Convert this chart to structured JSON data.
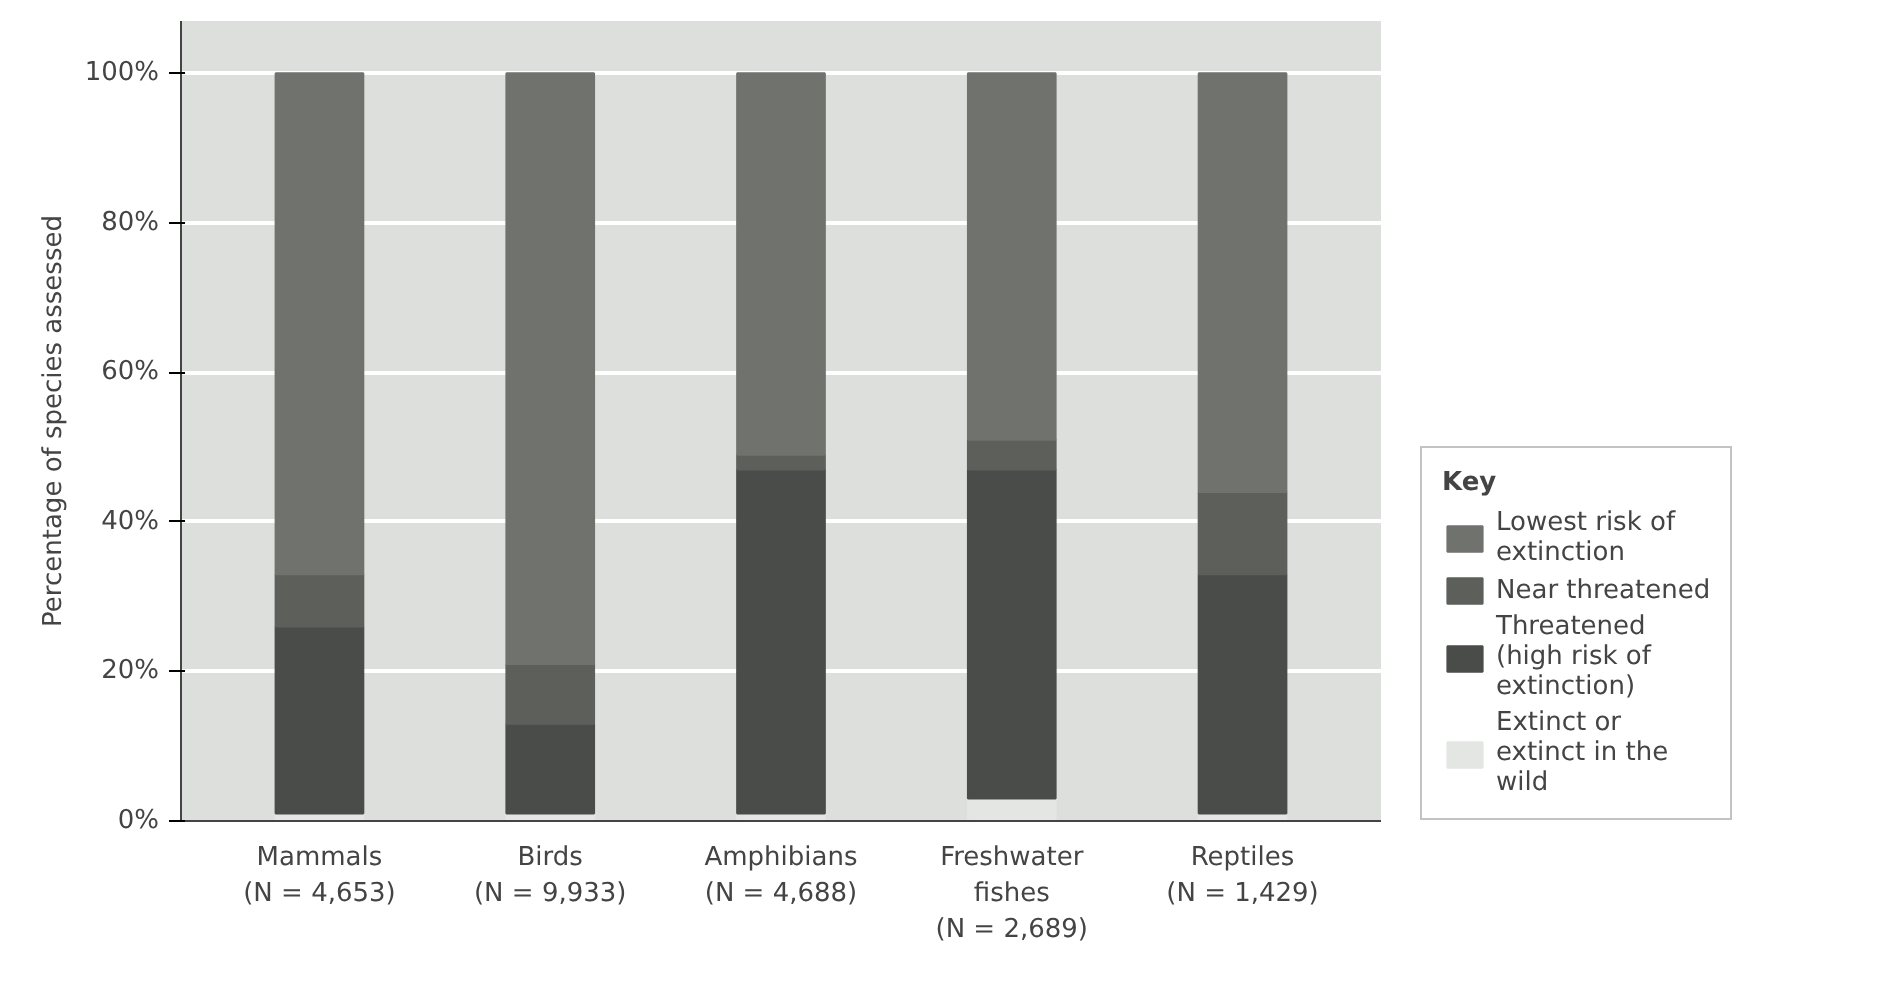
{
  "chart_data": {
    "type": "bar",
    "stacked": true,
    "ylabel": "Percentage of species assessed",
    "legend_title": "Key",
    "legend": "right",
    "categories": [
      "Mammals (N = 4,653)",
      "Birds (N = 9,933)",
      "Amphibians (N = 4,688)",
      "Freshwater fishes (N = 2,689)",
      "Reptiles (N = 1,429)"
    ],
    "series": [
      {
        "name": "Extinct or extinct in the wild",
        "color": "#e4e6e3",
        "values": [
          1,
          1,
          1,
          3,
          1
        ]
      },
      {
        "name": "Threatened (high risk of extinction)",
        "color": "#4a4c49",
        "values": [
          25,
          12,
          46,
          44,
          32
        ]
      },
      {
        "name": "Near threatened",
        "color": "#5d5f5b",
        "values": [
          7,
          8,
          2,
          4,
          11
        ]
      },
      {
        "name": "Lowest risk of extinction",
        "color": "#70726e",
        "values": [
          67,
          79,
          51,
          49,
          56
        ]
      }
    ],
    "ylim": [
      0,
      107
    ],
    "yticks": [
      {
        "value": 0,
        "label": "0%"
      },
      {
        "value": 20,
        "label": "20%"
      },
      {
        "value": 40,
        "label": "40%"
      },
      {
        "value": 60,
        "label": "60%"
      },
      {
        "value": 80,
        "label": "80%"
      },
      {
        "value": 100,
        "label": "100%"
      }
    ],
    "grid": "y"
  }
}
